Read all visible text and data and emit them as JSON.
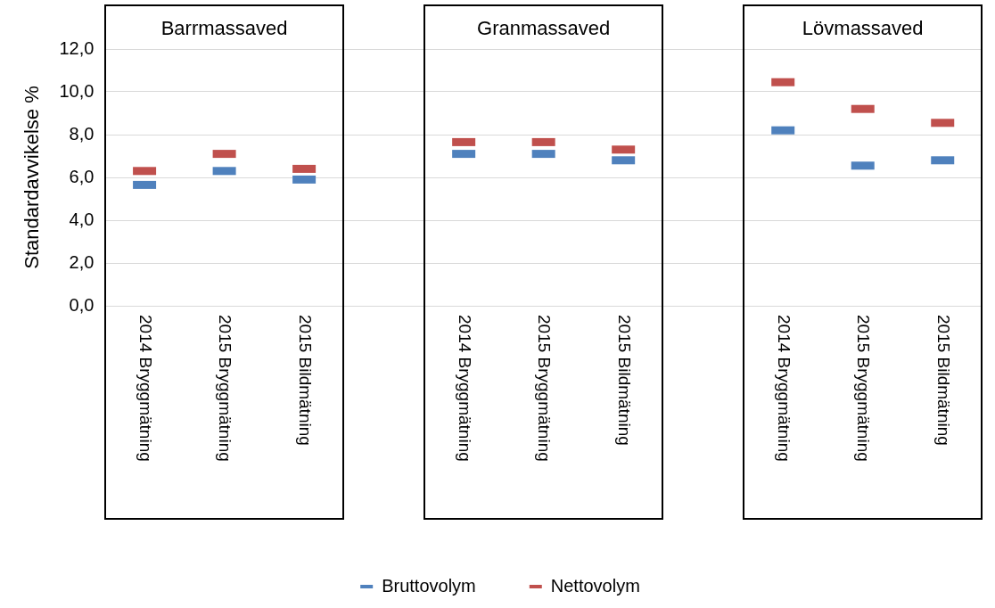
{
  "chart_data": {
    "type": "scatter",
    "ylabel": "Standardavvikelse %",
    "categories": [
      "2014 Bryggmätning",
      "2015 Bryggmätning",
      "2015 Bildmätning",
      null,
      "2014 Bryggmätning",
      "2015 Bryggmätning",
      "2015 Bildmätning",
      null,
      "2014 Bryggmätning",
      "2015 Bryggmätning",
      "2015 Bildmätning"
    ],
    "series": [
      {
        "name": "Bruttovolym",
        "color": "#4f81bd",
        "values": [
          5.65,
          6.3,
          5.9,
          null,
          7.1,
          7.1,
          6.8,
          null,
          8.2,
          6.55,
          6.8
        ]
      },
      {
        "name": "Nettovolym",
        "color": "#c0504d",
        "values": [
          6.3,
          7.1,
          6.4,
          null,
          7.65,
          7.65,
          7.3,
          null,
          10.45,
          9.2,
          8.55
        ]
      }
    ],
    "ylim": [
      0,
      12
    ],
    "yticks": [
      {
        "value": 0,
        "label": "0,0"
      },
      {
        "value": 2,
        "label": "2,0"
      },
      {
        "value": 4,
        "label": "4,0"
      },
      {
        "value": 6,
        "label": "6,0"
      },
      {
        "value": 8,
        "label": "8,0"
      },
      {
        "value": 10,
        "label": "10,0"
      },
      {
        "value": 12,
        "label": "12,0"
      }
    ],
    "annotations": [
      "Barrmassaved",
      "Granmassaved",
      "Lövmassaved"
    ],
    "grid": "y",
    "legend": "bottom"
  }
}
